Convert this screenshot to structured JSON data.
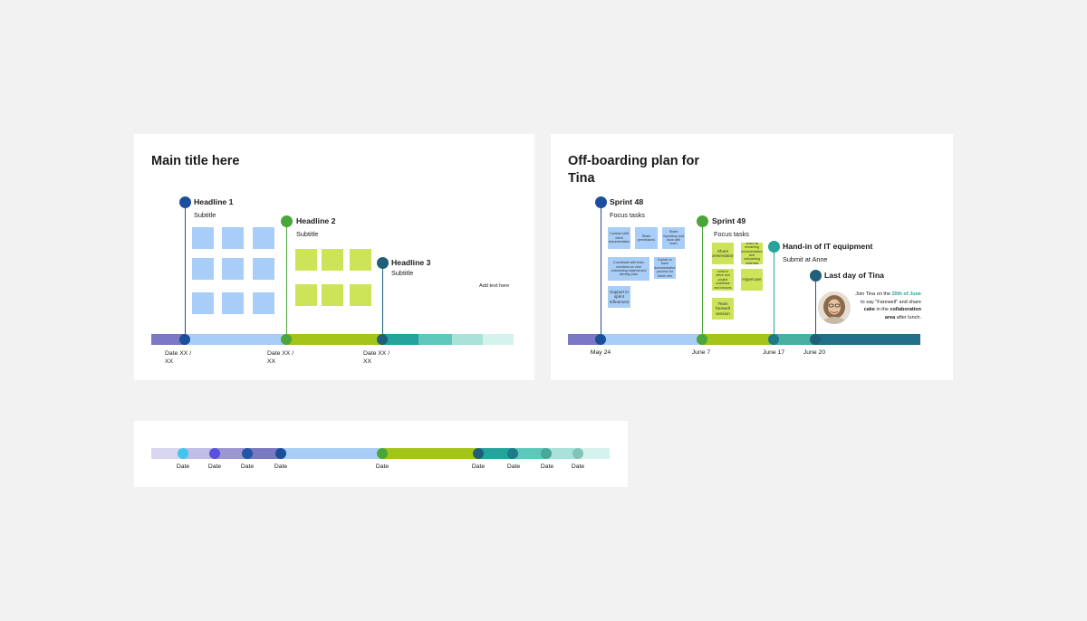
{
  "colors": {
    "background": "#f2f2f2",
    "card": "#ffffff",
    "purple": "#7b78c4",
    "lightblue": "#a8cdf7",
    "green": "#a3c418",
    "teal": "#24a49a",
    "tealmid": "#5ec8ba",
    "teallight": "#a8e2d8",
    "tealpale": "#d6f2ec",
    "darkteal": "#24708a",
    "navy": "#1b4f9c",
    "blue_sticky": "#a8cdf7",
    "green_sticky": "#cde458"
  },
  "template_card": {
    "title": "Main title here",
    "headlines": [
      {
        "title": "Headline 1",
        "subtitle": "Subtitle",
        "date": "Date XX / XX"
      },
      {
        "title": "Headline 2",
        "subtitle": "Subtitle",
        "date": "Date XX / XX"
      },
      {
        "title": "Headline 3",
        "subtitle": "Subtitle",
        "date": "Date XX / XX"
      }
    ],
    "add_text": "Add text here"
  },
  "offboarding_card": {
    "title": "Off-boarding plan for Tina",
    "milestones": [
      {
        "title": "Sprint 48",
        "subtitle": "Focus tasks",
        "date": "May 24"
      },
      {
        "title": "Sprint 49",
        "subtitle": "Focus tasks",
        "date": "June 7"
      },
      {
        "title": "Hand-in of IT equipment",
        "subtitle": "Submit at Anne",
        "date": "June 17"
      },
      {
        "title": "Last day of Tina",
        "subtitle": "",
        "date": "June 20"
      }
    ],
    "sprint48_notes": [
      "Contract with client documentation",
      "Share permissions",
      "Share repository and docs with team",
      "Coordinate with team members on new onboarding material and develop plan",
      "Explain to team documentation process for future refs",
      "Support in sprint refinement"
    ],
    "sprint49_notes": [
      "Share presentation",
      "Share all remaining documentation and onboarding materials",
      "Share all notes in office and project codebase and lessons learned",
      "Hypercare",
      "Team farewell session"
    ],
    "message": {
      "pre": "Join Tina on the ",
      "date_highlight": "20th of June",
      "mid": " to say \"Farewell\" and share ",
      "bold1": "cake",
      "mid2": " in the ",
      "bold2": "collaboration area",
      "post": " after lunch."
    }
  },
  "date_strip": {
    "labels": [
      "Date",
      "Date",
      "Date",
      "Date",
      "Date",
      "Date",
      "Date",
      "Date",
      "Date"
    ]
  }
}
